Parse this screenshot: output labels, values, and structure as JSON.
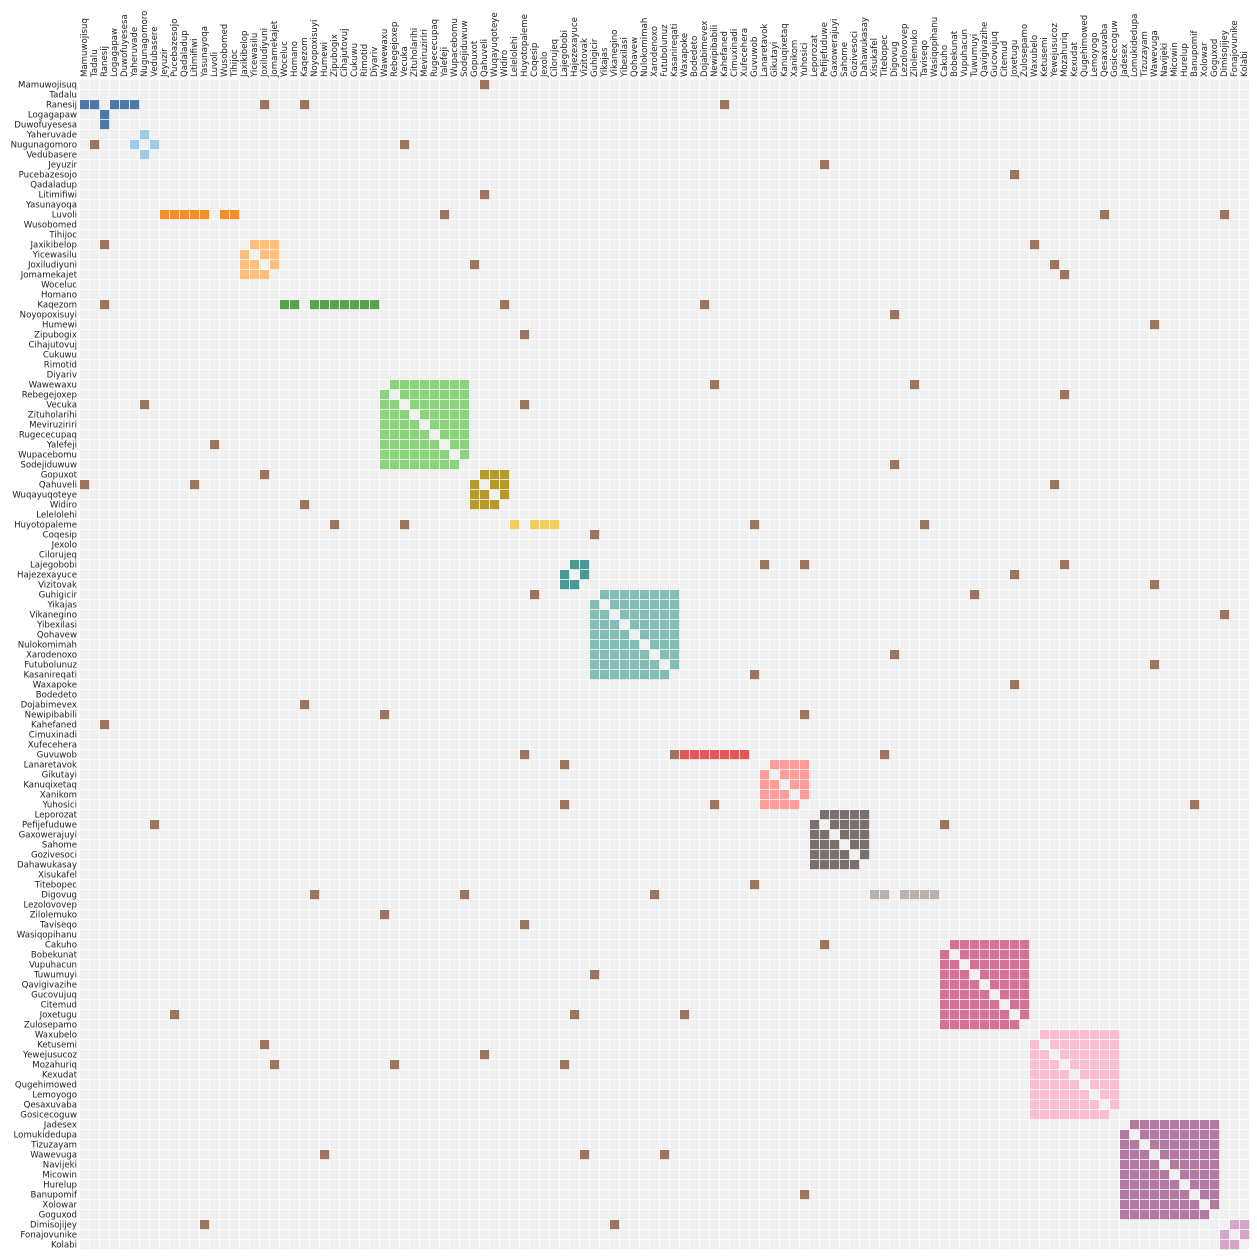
{
  "chart_data": {
    "type": "heatmap",
    "title": "",
    "xlabel": "",
    "ylabel": "",
    "labels": [
      "Mamuwojisuq",
      "Tadalu",
      "Ranesij",
      "Logagapaw",
      "Duwofuyesesa",
      "Yaheruvade",
      "Nugunagomoro",
      "Vedubasere",
      "Jeyuzir",
      "Pucebazesojo",
      "Qadaladup",
      "Litimifiwi",
      "Yasunayoqa",
      "Luvoli",
      "Wusobomed",
      "Tihijoc",
      "Jaxikibelop",
      "Yicewasilu",
      "Joxiludiyuni",
      "Jomamekajet",
      "Woceluc",
      "Homano",
      "Kaqezom",
      "Noyopoxisuyi",
      "Humewi",
      "Zipubogix",
      "Cihajutovuj",
      "Cukuwu",
      "Rimotid",
      "Diyariv",
      "Wawewaxu",
      "Rebegejoxep",
      "Vecuka",
      "Zituholarihi",
      "Meviruziriri",
      "Rugececupaq",
      "Yalefeji",
      "Wupacebomu",
      "Sodejiduwuw",
      "Gopuxot",
      "Qahuveli",
      "Wuqayuqoteye",
      "Widiro",
      "Lelelolehi",
      "Huyotopaleme",
      "Coqesip",
      "Jexolo",
      "Cilorujeq",
      "Lajegobobi",
      "Hajezexayuce",
      "Vizitovak",
      "Guhigicir",
      "Yikajas",
      "Vikanegino",
      "Yibexilasi",
      "Qohavew",
      "Nulokomimah",
      "Xarodenoxo",
      "Futubolunuz",
      "Kasanireqati",
      "Waxapoke",
      "Bodedeto",
      "Dojabimevex",
      "Newipibabili",
      "Kahefaned",
      "Cimuxinadi",
      "Xufecehera",
      "Guvuwob",
      "Lanaretavok",
      "Gikutayi",
      "Kanuqixetaq",
      "Xanikom",
      "Yuhosici",
      "Leporozat",
      "Pefijefuduwe",
      "Gaxowerajuyi",
      "Sahome",
      "Gozivesoci",
      "Dahawukasay",
      "Xisukafel",
      "Titebopec",
      "Digovug",
      "Lezolovovep",
      "Zilolemuko",
      "Taviseqo",
      "Wasiqopihanu",
      "Cakuho",
      "Bobekunat",
      "Vupuhacun",
      "Tuwumuyi",
      "Qavigivazihe",
      "Gucovujuq",
      "Citemud",
      "Joxetugu",
      "Zulosepamo",
      "Waxubelo",
      "Ketusemi",
      "Yewejusucoz",
      "Mozahuriq",
      "Kexudat",
      "Qugehimowed",
      "Lemoyogo",
      "Qesaxuvaba",
      "Gosicecoguw",
      "Jadesex",
      "Lomukidedupa",
      "Tizuzayam",
      "Wawevuga",
      "Navijeki",
      "Micowin",
      "Hurelup",
      "Banupomif",
      "Xolowar",
      "Goguxod",
      "Dimisojijey",
      "Fonajovunike",
      "Kolabi"
    ],
    "groups": [
      {
        "start": 0,
        "end": 7,
        "color": "#4e79a7",
        "members": [
          [
            2,
            0
          ],
          [
            2,
            1
          ],
          [
            2,
            3
          ],
          [
            2,
            4
          ],
          [
            2,
            5
          ],
          [
            3,
            2
          ],
          [
            4,
            2
          ]
        ]
      },
      {
        "start": 5,
        "end": 7,
        "color": "#a0cbe8",
        "members": [
          [
            6,
            5
          ],
          [
            6,
            7
          ],
          [
            5,
            6
          ],
          [
            7,
            6
          ]
        ]
      },
      {
        "start": 8,
        "end": 15,
        "color": "#f28e2b",
        "members": [
          [
            13,
            8
          ],
          [
            13,
            9
          ],
          [
            13,
            10
          ],
          [
            13,
            11
          ],
          [
            13,
            12
          ],
          [
            13,
            14
          ],
          [
            13,
            15
          ]
        ]
      },
      {
        "start": 16,
        "end": 19,
        "color": "#ffbe7d",
        "members": "clique"
      },
      {
        "start": 20,
        "end": 29,
        "color": "#59a14f",
        "members": [
          [
            22,
            20
          ],
          [
            22,
            21
          ],
          [
            22,
            23
          ],
          [
            22,
            24
          ],
          [
            22,
            25
          ],
          [
            22,
            26
          ],
          [
            22,
            27
          ],
          [
            22,
            28
          ],
          [
            22,
            29
          ]
        ]
      },
      {
        "start": 30,
        "end": 38,
        "color": "#8cd17d",
        "members": "clique"
      },
      {
        "start": 39,
        "end": 42,
        "color": "#b6992d",
        "members": "clique"
      },
      {
        "start": 43,
        "end": 47,
        "color": "#f1ce63",
        "members": [
          [
            44,
            43
          ],
          [
            44,
            45
          ],
          [
            44,
            46
          ],
          [
            44,
            47
          ]
        ]
      },
      {
        "start": 48,
        "end": 50,
        "color": "#499894",
        "members": "clique"
      },
      {
        "start": 51,
        "end": 59,
        "color": "#86bcb6",
        "members": "clique"
      },
      {
        "start": 60,
        "end": 67,
        "color": "#e15759",
        "members": [
          [
            67,
            60
          ],
          [
            67,
            61
          ],
          [
            67,
            62
          ],
          [
            67,
            63
          ],
          [
            67,
            64
          ],
          [
            67,
            65
          ],
          [
            67,
            66
          ]
        ]
      },
      {
        "start": 68,
        "end": 72,
        "color": "#ff9d9a",
        "members": "clique"
      },
      {
        "start": 73,
        "end": 78,
        "color": "#79706e",
        "members": "clique"
      },
      {
        "start": 79,
        "end": 85,
        "color": "#bab0ac",
        "members": [
          [
            81,
            79
          ],
          [
            81,
            80
          ],
          [
            81,
            82
          ],
          [
            81,
            83
          ],
          [
            81,
            84
          ],
          [
            81,
            85
          ]
        ]
      },
      {
        "start": 86,
        "end": 94,
        "color": "#d37295",
        "members": "clique"
      },
      {
        "start": 95,
        "end": 103,
        "color": "#fabfd2",
        "members": "clique"
      },
      {
        "start": 104,
        "end": 113,
        "color": "#b07aa1",
        "members": "clique"
      },
      {
        "start": 114,
        "end": 116,
        "color": "#d4a6c8",
        "members": "clique"
      }
    ],
    "cross_links": [
      [
        0,
        40
      ],
      [
        2,
        18
      ],
      [
        2,
        22
      ],
      [
        2,
        64
      ],
      [
        6,
        1
      ],
      [
        6,
        32
      ],
      [
        8,
        74
      ],
      [
        9,
        93
      ],
      [
        11,
        40
      ],
      [
        13,
        36
      ],
      [
        13,
        102
      ],
      [
        13,
        114
      ],
      [
        16,
        2
      ],
      [
        16,
        95
      ],
      [
        18,
        39
      ],
      [
        18,
        97
      ],
      [
        19,
        98
      ],
      [
        22,
        2
      ],
      [
        22,
        42
      ],
      [
        22,
        62
      ],
      [
        23,
        81
      ],
      [
        24,
        107
      ],
      [
        25,
        44
      ],
      [
        30,
        63
      ],
      [
        30,
        83
      ],
      [
        31,
        98
      ],
      [
        32,
        6
      ],
      [
        32,
        44
      ],
      [
        36,
        13
      ],
      [
        38,
        81
      ],
      [
        39,
        18
      ],
      [
        40,
        0
      ],
      [
        40,
        11
      ],
      [
        40,
        97
      ],
      [
        42,
        22
      ],
      [
        44,
        25
      ],
      [
        44,
        32
      ],
      [
        44,
        67
      ],
      [
        44,
        84
      ],
      [
        45,
        51
      ],
      [
        48,
        68
      ],
      [
        48,
        72
      ],
      [
        48,
        98
      ],
      [
        49,
        93
      ],
      [
        50,
        107
      ],
      [
        51,
        45
      ],
      [
        51,
        89
      ],
      [
        53,
        114
      ],
      [
        57,
        81
      ],
      [
        58,
        107
      ],
      [
        59,
        67
      ],
      [
        60,
        93
      ],
      [
        62,
        22
      ],
      [
        63,
        30
      ],
      [
        63,
        72
      ],
      [
        64,
        2
      ],
      [
        67,
        44
      ],
      [
        67,
        59
      ],
      [
        67,
        80
      ],
      [
        68,
        48
      ],
      [
        72,
        48
      ],
      [
        72,
        63
      ],
      [
        72,
        111
      ],
      [
        74,
        7
      ],
      [
        74,
        86
      ],
      [
        80,
        67
      ],
      [
        81,
        23
      ],
      [
        81,
        38
      ],
      [
        81,
        57
      ],
      [
        83,
        30
      ],
      [
        84,
        44
      ],
      [
        86,
        74
      ],
      [
        89,
        51
      ],
      [
        93,
        9
      ],
      [
        93,
        49
      ],
      [
        93,
        60
      ],
      [
        96,
        18
      ],
      [
        97,
        40
      ],
      [
        98,
        19
      ],
      [
        98,
        31
      ],
      [
        98,
        48
      ],
      [
        107,
        24
      ],
      [
        107,
        50
      ],
      [
        107,
        58
      ],
      [
        111,
        72
      ],
      [
        114,
        12
      ],
      [
        114,
        53
      ]
    ],
    "link_color": "#9c755f",
    "background_color": "#f0f0f0",
    "grid": true
  }
}
